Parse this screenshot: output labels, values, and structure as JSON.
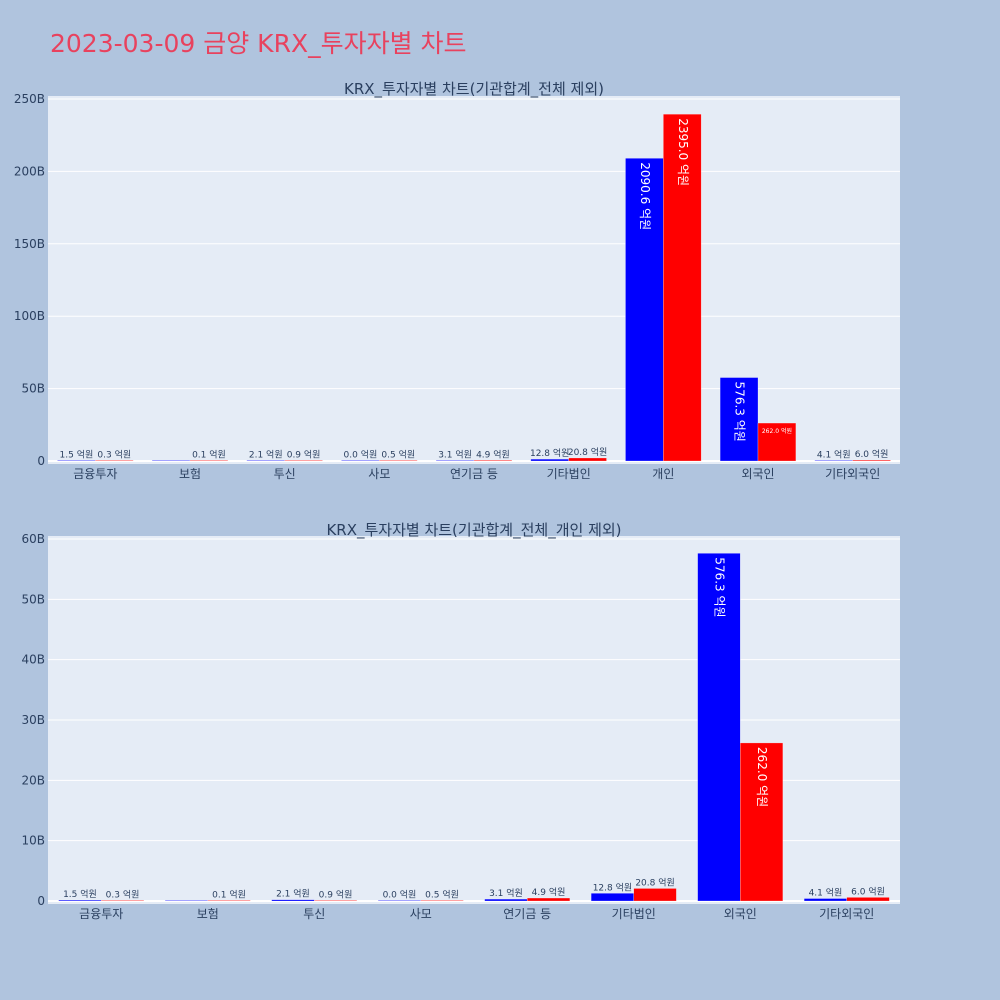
{
  "title": "2023-03-09 금양 KRX_투자자별 차트",
  "colors": {
    "series_1": "#0000ff",
    "series_2": "#ff0000",
    "plot_bg": "#e5ecf6",
    "paper_bg": "#b0c4de",
    "title": "#e8425e"
  },
  "chart_data": [
    {
      "type": "bar",
      "title": "KRX_투자자별 차트(기관합계_전체 제외)",
      "categories": [
        "금융투자",
        "보험",
        "투신",
        "사모",
        "연기금 등",
        "기타법인",
        "개인",
        "외국인",
        "기타외국인"
      ],
      "series": [
        {
          "values": [
            0.15,
            0,
            0.21,
            0.0,
            0.31,
            1.28,
            209.06,
            57.63,
            0.41
          ],
          "labels": [
            "1.5 억원",
            "",
            "2.1 억원",
            "0.0 억원",
            "3.1 억원",
            "12.8 억원",
            "2090.6 억원",
            "576.3 억원",
            "4.1 억원"
          ]
        },
        {
          "values": [
            0.03,
            0.01,
            0.09,
            0.05,
            0.49,
            2.08,
            239.5,
            26.2,
            0.6
          ],
          "labels": [
            "0.3 억원",
            "0.1 억원",
            "0.9 억원",
            "0.5 억원",
            "4.9 억원",
            "20.8 억원",
            "2395.0 억원",
            "262.0 억원",
            "6.0 억원"
          ]
        }
      ],
      "ylim": [
        0,
        250
      ],
      "yticks": [
        "0",
        "50B",
        "100B",
        "150B",
        "200B",
        "250B"
      ],
      "grid": true
    },
    {
      "type": "bar",
      "title": "KRX_투자자별 차트(기관합계_전체_개인 제외)",
      "categories": [
        "금융투자",
        "보험",
        "투신",
        "사모",
        "연기금 등",
        "기타법인",
        "외국인",
        "기타외국인"
      ],
      "series": [
        {
          "values": [
            0.15,
            0,
            0.21,
            0.0,
            0.31,
            1.28,
            57.63,
            0.41
          ],
          "labels": [
            "1.5 억원",
            "",
            "2.1 억원",
            "0.0 억원",
            "3.1 억원",
            "12.8 억원",
            "576.3 억원",
            "4.1 억원"
          ]
        },
        {
          "values": [
            0.03,
            0.01,
            0.09,
            0.05,
            0.49,
            2.08,
            26.2,
            0.6
          ],
          "labels": [
            "0.3 억원",
            "0.1 억원",
            "0.9 억원",
            "0.5 억원",
            "4.9 억원",
            "20.8 억원",
            "262.0 억원",
            "6.0 억원"
          ]
        }
      ],
      "ylim": [
        0,
        60
      ],
      "yticks": [
        "0",
        "10B",
        "20B",
        "30B",
        "40B",
        "50B",
        "60B"
      ],
      "grid": true
    }
  ]
}
